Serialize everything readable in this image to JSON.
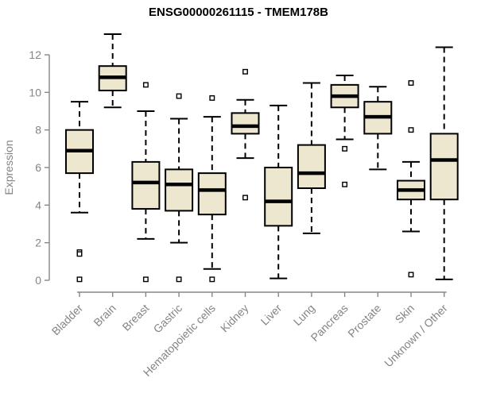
{
  "title": "ENSG00000261115 - TMEM178B",
  "chart_data": {
    "type": "boxplot",
    "title": "ENSG00000261115 - TMEM178B",
    "xlabel": "",
    "ylabel": "Expression",
    "ylim": [
      0,
      13.2
    ],
    "yticks": [
      0,
      2,
      4,
      6,
      8,
      10,
      12
    ],
    "grid": false,
    "legend": "none",
    "categories": [
      "Bladder",
      "Brain",
      "Breast",
      "Gastric",
      "Hematopoietic cells",
      "Kidney",
      "Liver",
      "Lung",
      "Pancreas",
      "Prostate",
      "Skin",
      "Unknown / Other"
    ],
    "series": [
      {
        "name": "Bladder",
        "low": 3.6,
        "q1": 5.7,
        "median": 6.9,
        "q3": 8.0,
        "high": 9.5,
        "outliers": [
          1.5,
          1.4,
          0.05
        ]
      },
      {
        "name": "Brain",
        "low": 9.2,
        "q1": 10.1,
        "median": 10.8,
        "q3": 11.4,
        "high": 13.1,
        "outliers": []
      },
      {
        "name": "Breast",
        "low": 2.2,
        "q1": 3.8,
        "median": 5.2,
        "q3": 6.3,
        "high": 9.0,
        "outliers": [
          10.4,
          0.05
        ]
      },
      {
        "name": "Gastric",
        "low": 2.0,
        "q1": 3.7,
        "median": 5.1,
        "q3": 5.9,
        "high": 8.6,
        "outliers": [
          9.8,
          0.05
        ]
      },
      {
        "name": "Hematopoietic cells",
        "low": 0.6,
        "q1": 3.5,
        "median": 4.8,
        "q3": 5.7,
        "high": 8.7,
        "outliers": [
          9.7,
          0.05
        ]
      },
      {
        "name": "Kidney",
        "low": 6.5,
        "q1": 7.8,
        "median": 8.2,
        "q3": 8.9,
        "high": 9.6,
        "outliers": [
          11.1,
          4.4
        ]
      },
      {
        "name": "Liver",
        "low": 0.1,
        "q1": 2.9,
        "median": 4.2,
        "q3": 6.0,
        "high": 9.3,
        "outliers": []
      },
      {
        "name": "Lung",
        "low": 2.5,
        "q1": 4.9,
        "median": 5.7,
        "q3": 7.2,
        "high": 10.5,
        "outliers": []
      },
      {
        "name": "Pancreas",
        "low": 7.5,
        "q1": 9.2,
        "median": 9.8,
        "q3": 10.4,
        "high": 10.9,
        "outliers": [
          7.0,
          5.1
        ]
      },
      {
        "name": "Prostate",
        "low": 5.9,
        "q1": 7.8,
        "median": 8.7,
        "q3": 9.5,
        "high": 10.3,
        "outliers": []
      },
      {
        "name": "Skin",
        "low": 2.6,
        "q1": 4.3,
        "median": 4.8,
        "q3": 5.3,
        "high": 6.3,
        "outliers": [
          10.5,
          8.0,
          0.3
        ]
      },
      {
        "name": "Unknown / Other",
        "low": 0.05,
        "q1": 4.3,
        "median": 6.4,
        "q3": 7.8,
        "high": 12.4,
        "outliers": []
      }
    ]
  },
  "colors": {
    "background": "#FFFFFF",
    "box_fill": "#EDE7D0",
    "box_border": "#000000",
    "median_line": "#000000",
    "whisker": "#000000",
    "outlier_border": "#000000",
    "outlier_fill": "#FFFFFF",
    "axis": "#878787",
    "tick_label": "#848484",
    "title_color": "#000000"
  }
}
